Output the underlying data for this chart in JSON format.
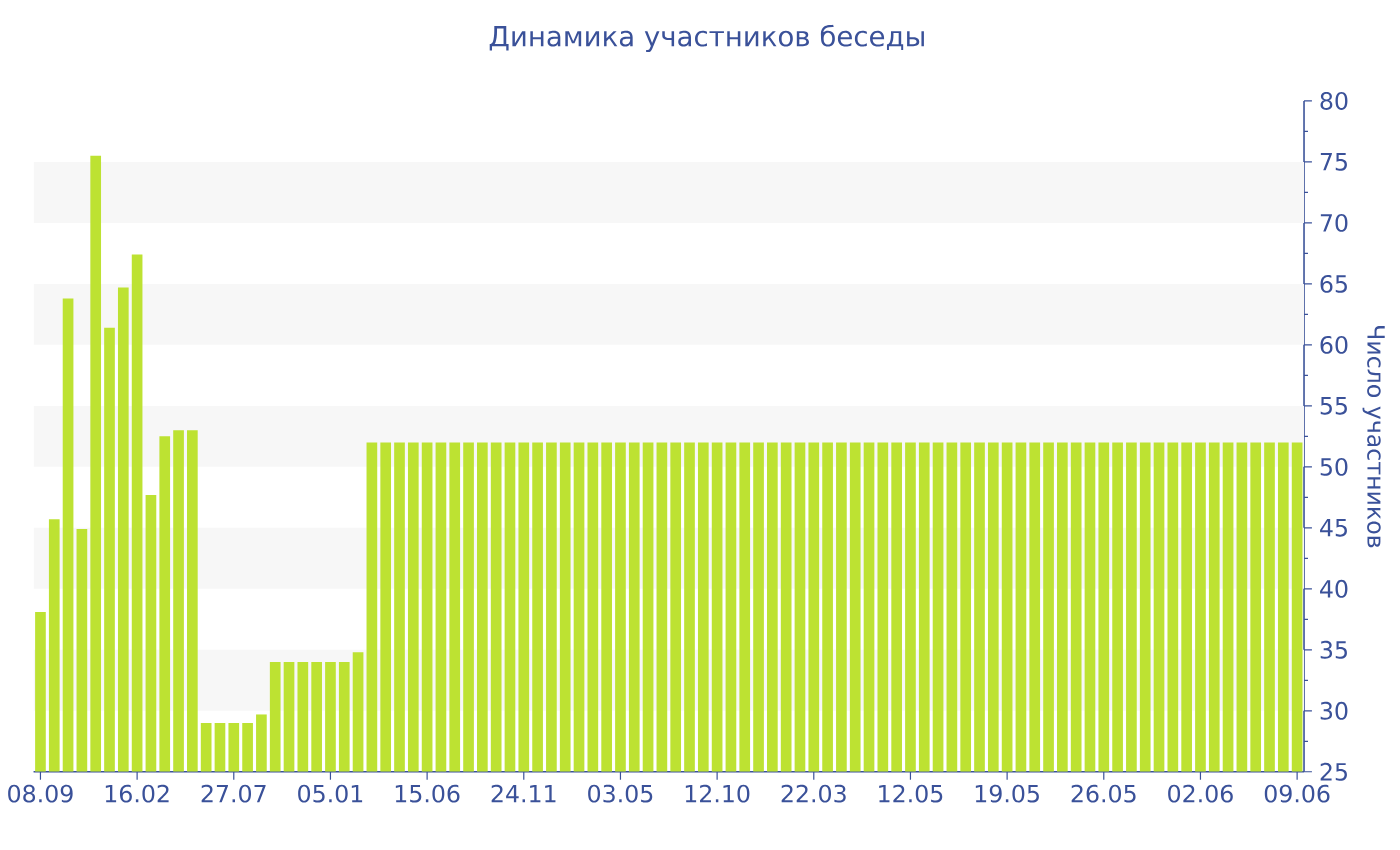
{
  "chart_data": {
    "type": "bar",
    "title": "Динамика участников беседы",
    "ylabel": "Число участников",
    "categories": [
      "08.09",
      null,
      null,
      null,
      null,
      null,
      null,
      "16.02",
      null,
      null,
      null,
      null,
      null,
      null,
      "27.07",
      null,
      null,
      null,
      null,
      null,
      null,
      "05.01",
      null,
      null,
      null,
      null,
      null,
      null,
      "15.06",
      null,
      null,
      null,
      null,
      null,
      null,
      "24.11",
      null,
      null,
      null,
      null,
      null,
      null,
      "03.05",
      null,
      null,
      null,
      null,
      null,
      null,
      "12.10",
      null,
      null,
      null,
      null,
      null,
      null,
      "22.03",
      null,
      null,
      null,
      null,
      null,
      null,
      "12.05",
      null,
      null,
      null,
      null,
      null,
      null,
      "19.05",
      null,
      null,
      null,
      null,
      null,
      null,
      "26.05",
      null,
      null,
      null,
      null,
      null,
      null,
      "02.06",
      null,
      null,
      null,
      null,
      null,
      null,
      "09.06"
    ],
    "values": [
      38.1,
      45.7,
      63.8,
      44.9,
      75.5,
      61.4,
      64.7,
      67.4,
      47.7,
      52.5,
      53,
      53,
      29,
      29,
      29,
      29,
      29.7,
      34,
      34,
      34,
      34,
      34,
      34,
      34.8,
      52,
      52,
      52,
      52,
      52,
      52,
      52,
      52,
      52,
      52,
      52,
      52,
      52,
      52,
      52,
      52,
      52,
      52,
      52,
      52,
      52,
      52,
      52,
      52,
      52,
      52,
      52,
      52,
      52,
      52,
      52,
      52,
      52,
      52,
      52,
      52,
      52,
      52,
      52,
      52,
      52,
      52,
      52,
      52,
      52,
      52,
      52,
      52,
      52,
      52,
      52,
      52,
      52,
      52,
      52,
      52,
      52,
      52,
      52,
      52,
      52,
      52,
      52,
      52,
      52,
      52,
      52,
      52
    ],
    "color": "#bde232",
    "ylim": [
      25,
      80
    ],
    "yticks": [
      25,
      30,
      35,
      40,
      45,
      50,
      55,
      60,
      65,
      70,
      75,
      80
    ],
    "bands": [
      {
        "axis": "y",
        "from": 30,
        "to": 35,
        "color": "#f7f7f7"
      },
      {
        "axis": "y",
        "from": 40,
        "to": 45,
        "color": "#f7f7f7"
      },
      {
        "axis": "y",
        "from": 50,
        "to": 55,
        "color": "#f7f7f7"
      },
      {
        "axis": "y",
        "from": 60,
        "to": 65,
        "color": "#f7f7f7"
      },
      {
        "axis": "y",
        "from": 70,
        "to": 75,
        "color": "#f7f7f7"
      }
    ]
  }
}
